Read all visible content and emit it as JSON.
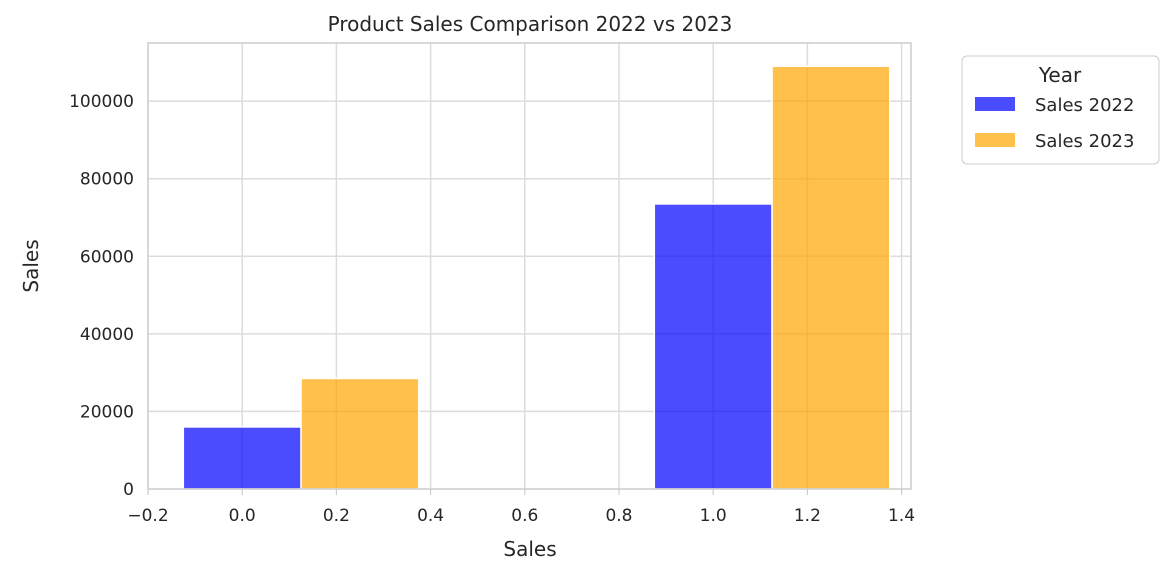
{
  "chart_data": {
    "type": "bar",
    "title": "Product Sales Comparison 2022 vs 2023",
    "xlabel": "Sales",
    "ylabel": "Sales",
    "xlim": [
      -0.2,
      1.42
    ],
    "ylim": [
      0,
      115000
    ],
    "xticks": [
      -0.2,
      0.0,
      0.2,
      0.4,
      0.6,
      0.8,
      1.0,
      1.2,
      1.4
    ],
    "xtick_labels": [
      "−0.2",
      "0.0",
      "0.2",
      "0.4",
      "0.6",
      "0.8",
      "1.0",
      "1.2",
      "1.4"
    ],
    "yticks": [
      0,
      20000,
      40000,
      60000,
      80000,
      100000
    ],
    "ytick_labels": [
      "0",
      "20000",
      "40000",
      "60000",
      "80000",
      "100000"
    ],
    "grid": true,
    "legend": {
      "title": "Year",
      "placement": "outside-top-right"
    },
    "series": [
      {
        "name": "Sales 2022",
        "color": "#0000ff",
        "bars": [
          {
            "x_start": -0.125,
            "x_end": 0.125,
            "value": 16000
          },
          {
            "x_start": 0.875,
            "x_end": 1.125,
            "value": 73500
          }
        ]
      },
      {
        "name": "Sales 2023",
        "color": "#ffa500",
        "bars": [
          {
            "x_start": 0.125,
            "x_end": 0.375,
            "value": 28500
          },
          {
            "x_start": 1.125,
            "x_end": 1.375,
            "value": 109000
          }
        ]
      }
    ]
  }
}
